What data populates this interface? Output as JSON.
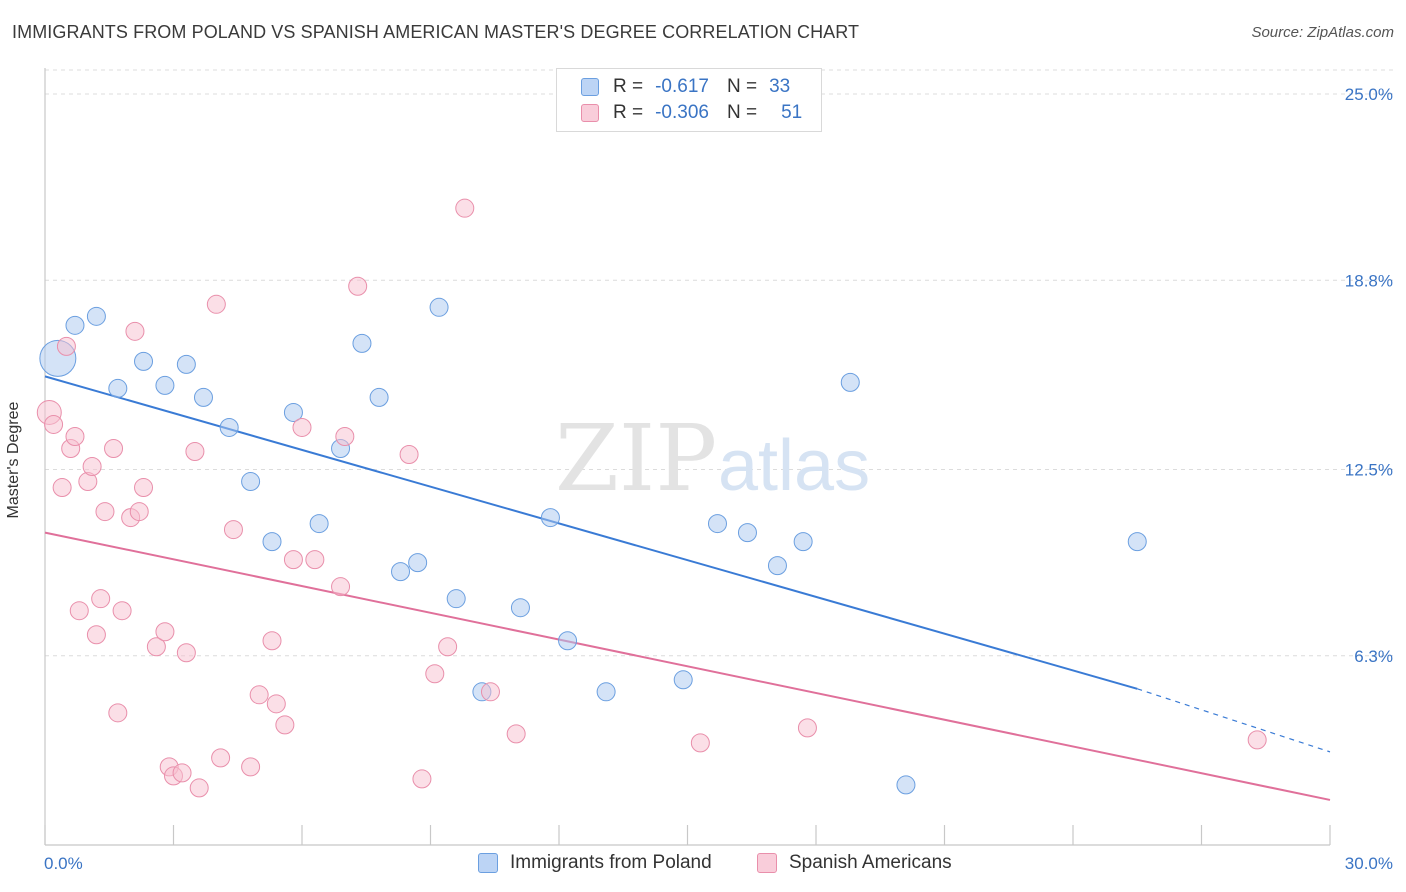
{
  "title": "IMMIGRANTS FROM POLAND VS SPANISH AMERICAN MASTER'S DEGREE CORRELATION CHART",
  "source": "Source: ZipAtlas.com",
  "watermark": {
    "zip": "ZIP",
    "atlas": "atlas"
  },
  "legend": {
    "rows": [
      {
        "r_label": "R =",
        "r_value": "-0.617",
        "n_label": "N =",
        "n_value": "33"
      },
      {
        "r_label": "R =",
        "r_value": "-0.306",
        "n_label": "N =",
        "n_value": "51"
      }
    ]
  },
  "chart_data": {
    "type": "scatter",
    "title": "IMMIGRANTS FROM POLAND VS SPANISH AMERICAN MASTER'S DEGREE CORRELATION CHART",
    "xlabel": "",
    "ylabel": "Master's Degree",
    "xlim": [
      0,
      30
    ],
    "ylim": [
      0,
      25.8
    ],
    "x_tick_labels": [
      "0.0%",
      "30.0%"
    ],
    "y_ticks": [
      6.3,
      12.5,
      18.8,
      25.0
    ],
    "y_tick_labels": [
      "6.3%",
      "12.5%",
      "18.8%",
      "25.0%"
    ],
    "grid": true,
    "legend_position": "top-center",
    "series": [
      {
        "name": "Immigrants from Poland",
        "color": "#a9c8f0",
        "stroke": "#6b9fe0",
        "line_color": "#3a7bd5",
        "trend": {
          "x0": 0,
          "y0": 15.6,
          "x1": 25.5,
          "y1": 5.2,
          "dash_to_x": 30,
          "dash_to_y": 3.1
        },
        "points": [
          [
            0.3,
            16.2
          ],
          [
            0.7,
            17.3
          ],
          [
            1.2,
            17.6
          ],
          [
            1.7,
            15.2
          ],
          [
            2.3,
            16.1
          ],
          [
            2.8,
            15.3
          ],
          [
            3.3,
            16.0
          ],
          [
            3.7,
            14.9
          ],
          [
            4.3,
            13.9
          ],
          [
            4.8,
            12.1
          ],
          [
            5.3,
            10.1
          ],
          [
            5.8,
            14.4
          ],
          [
            6.4,
            10.7
          ],
          [
            6.9,
            13.2
          ],
          [
            7.4,
            16.7
          ],
          [
            7.8,
            14.9
          ],
          [
            8.3,
            9.1
          ],
          [
            8.7,
            9.4
          ],
          [
            9.2,
            17.9
          ],
          [
            9.6,
            8.2
          ],
          [
            10.2,
            5.1
          ],
          [
            11.1,
            7.9
          ],
          [
            11.8,
            10.9
          ],
          [
            12.2,
            6.8
          ],
          [
            13.1,
            5.1
          ],
          [
            14.9,
            5.5
          ],
          [
            15.7,
            10.7
          ],
          [
            16.4,
            10.4
          ],
          [
            17.1,
            9.3
          ],
          [
            17.7,
            10.1
          ],
          [
            18.8,
            15.4
          ],
          [
            20.1,
            2.0
          ],
          [
            25.5,
            10.1
          ]
        ]
      },
      {
        "name": "Spanish Americans",
        "color": "#f7bfd0",
        "stroke": "#e98fab",
        "line_color": "#e0709a",
        "trend": {
          "x0": 0,
          "y0": 10.4,
          "x1": 30,
          "y1": 1.5
        },
        "points": [
          [
            0.1,
            14.4
          ],
          [
            0.2,
            14.0
          ],
          [
            0.4,
            11.9
          ],
          [
            0.5,
            16.6
          ],
          [
            0.6,
            13.2
          ],
          [
            0.7,
            13.6
          ],
          [
            0.8,
            7.8
          ],
          [
            1.0,
            12.1
          ],
          [
            1.1,
            12.6
          ],
          [
            1.2,
            7.0
          ],
          [
            1.3,
            8.2
          ],
          [
            1.4,
            11.1
          ],
          [
            1.6,
            13.2
          ],
          [
            1.7,
            4.4
          ],
          [
            1.8,
            7.8
          ],
          [
            2.0,
            10.9
          ],
          [
            2.1,
            17.1
          ],
          [
            2.2,
            11.1
          ],
          [
            2.3,
            11.9
          ],
          [
            2.6,
            6.6
          ],
          [
            2.8,
            7.1
          ],
          [
            2.9,
            2.6
          ],
          [
            3.0,
            2.3
          ],
          [
            3.2,
            2.4
          ],
          [
            3.3,
            6.4
          ],
          [
            3.5,
            13.1
          ],
          [
            3.6,
            1.9
          ],
          [
            4.0,
            18.0
          ],
          [
            4.1,
            2.9
          ],
          [
            4.4,
            10.5
          ],
          [
            4.8,
            2.6
          ],
          [
            5.0,
            5.0
          ],
          [
            5.3,
            6.8
          ],
          [
            5.4,
            4.7
          ],
          [
            5.6,
            4.0
          ],
          [
            5.8,
            9.5
          ],
          [
            6.0,
            13.9
          ],
          [
            6.3,
            9.5
          ],
          [
            6.9,
            8.6
          ],
          [
            7.0,
            13.6
          ],
          [
            7.3,
            18.6
          ],
          [
            8.5,
            13.0
          ],
          [
            8.8,
            2.2
          ],
          [
            9.1,
            5.7
          ],
          [
            9.4,
            6.6
          ],
          [
            9.8,
            21.2
          ],
          [
            10.4,
            5.1
          ],
          [
            11.0,
            3.7
          ],
          [
            15.3,
            3.4
          ],
          [
            17.8,
            3.9
          ],
          [
            28.3,
            3.5
          ]
        ]
      }
    ]
  }
}
